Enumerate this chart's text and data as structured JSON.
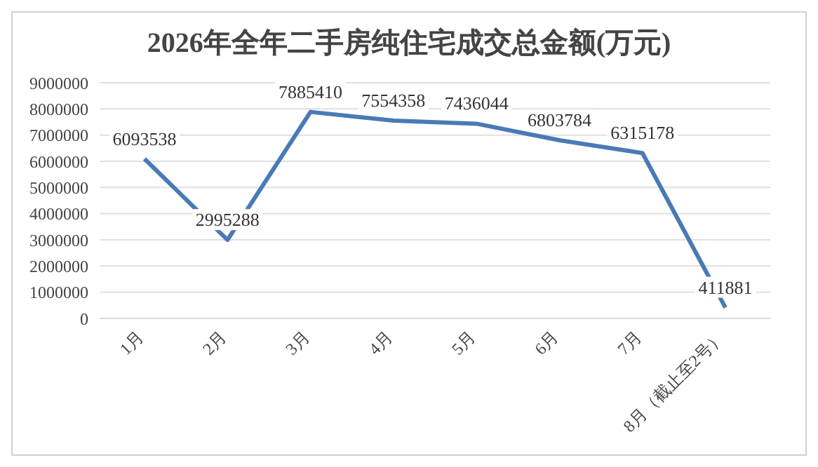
{
  "chart_data": {
    "type": "line",
    "title": "2026年全年二手房纯住宅成交总金额(万元)",
    "categories": [
      "1月",
      "2月",
      "3月",
      "4月",
      "5月",
      "6月",
      "7月",
      "8月（截止至2号）"
    ],
    "series": [
      {
        "color": "#4a7ab5",
        "values": [
          6093538,
          2995288,
          7885410,
          7554358,
          7436044,
          6803784,
          6315178,
          411881
        ]
      }
    ],
    "ylim": [
      0,
      9000000
    ],
    "yticks": [
      0,
      1000000,
      2000000,
      3000000,
      4000000,
      5000000,
      6000000,
      7000000,
      8000000,
      9000000
    ],
    "grid": "y",
    "data_labels": true,
    "marker": "none",
    "line_style": "solid",
    "legend": false
  }
}
